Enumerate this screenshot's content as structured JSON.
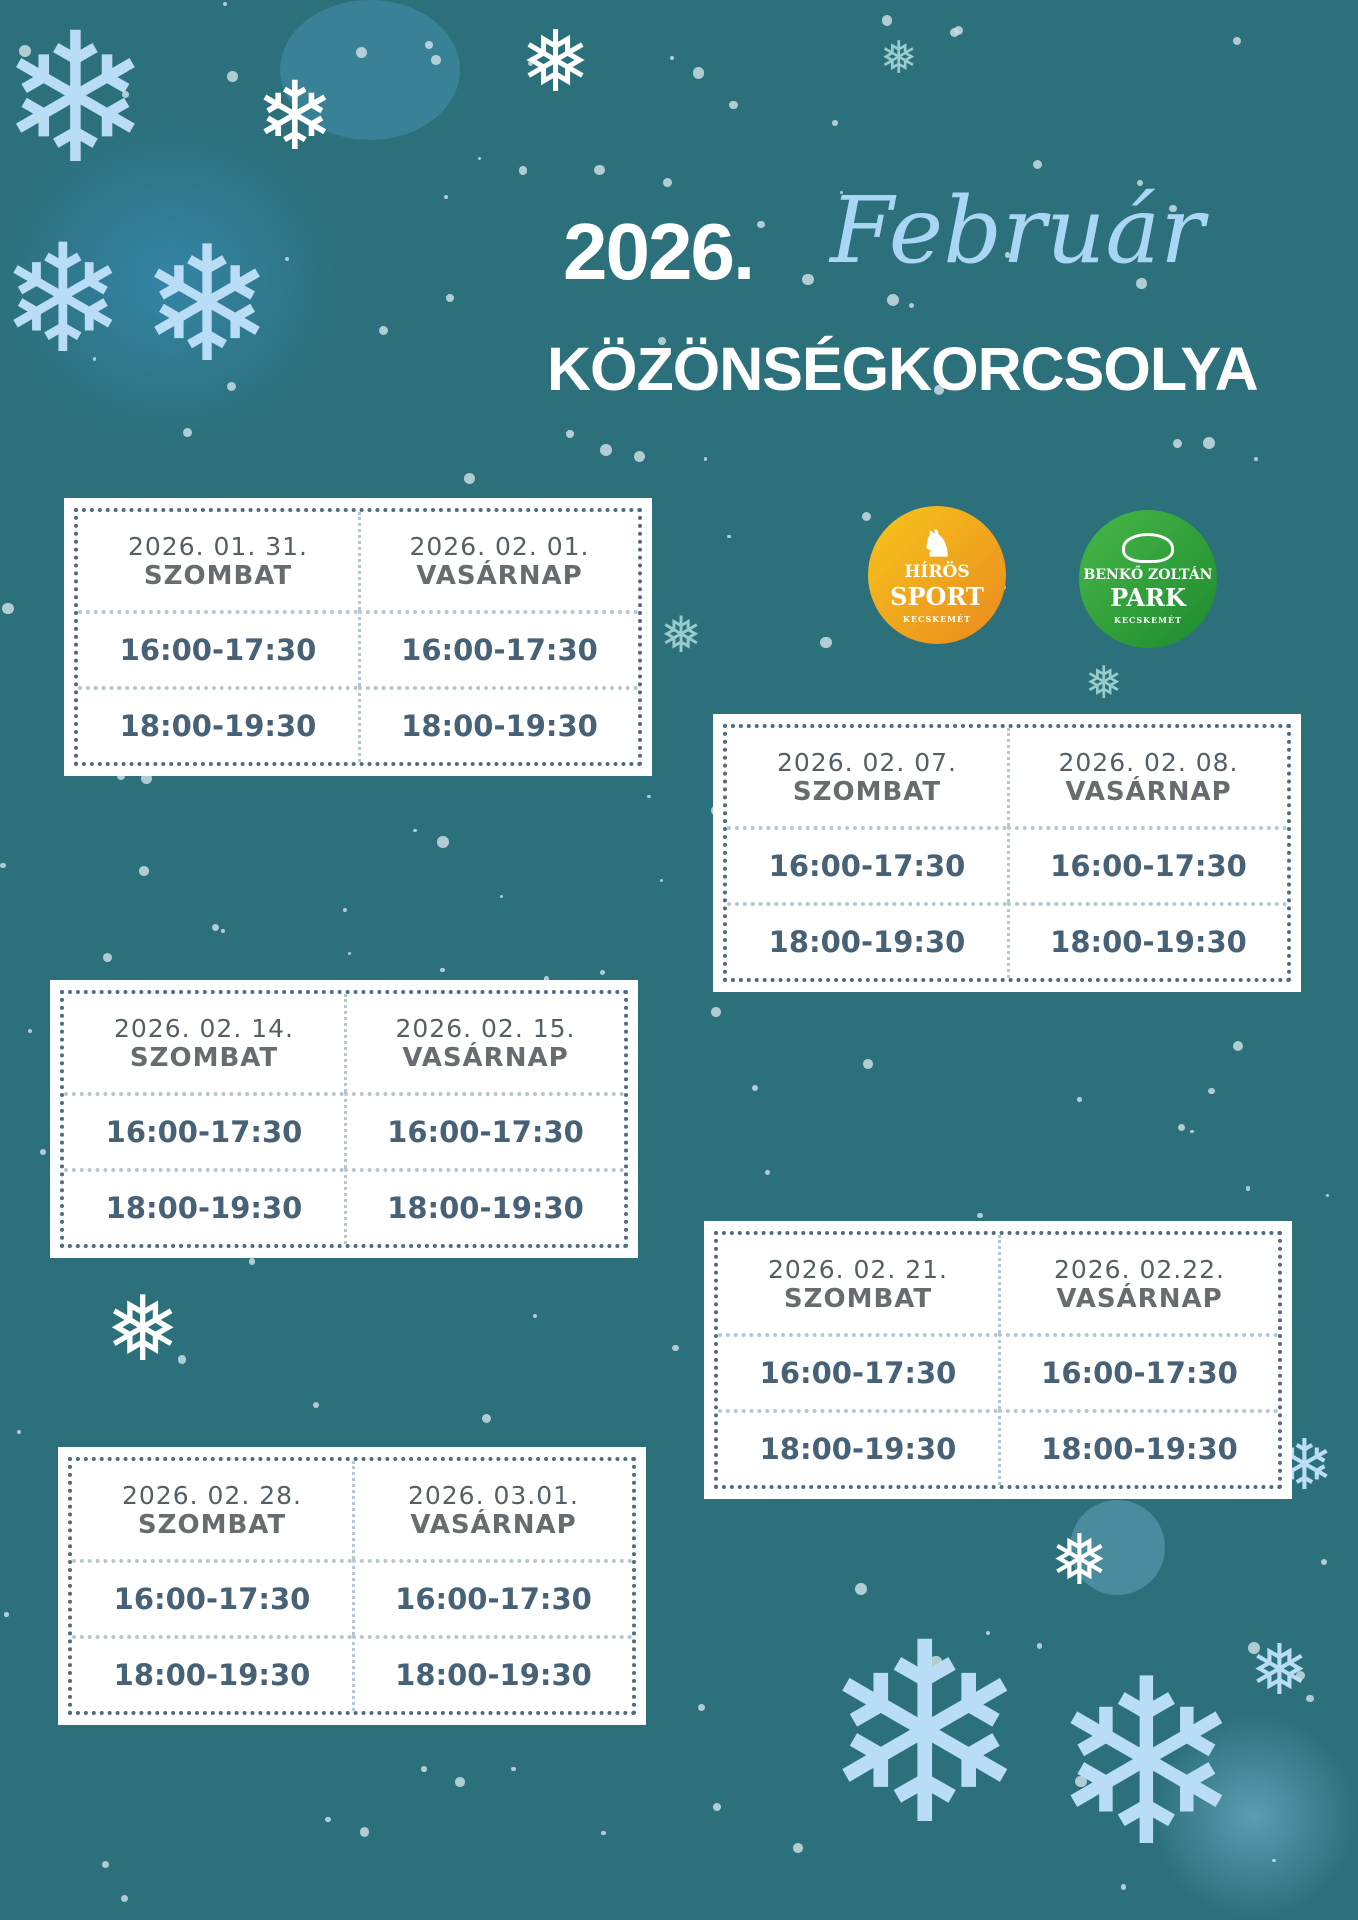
{
  "title": {
    "year": "2026.",
    "month": "Február",
    "event": "KÖZÖNSÉGKORCSOLYA"
  },
  "logos": [
    {
      "line1": "HÍRÖS",
      "line2": "SPORT",
      "line3": "KECSKEMÉT",
      "color": "#f2a516",
      "icon": "goat-icon"
    },
    {
      "line1": "BENKŐ ZOLTÁN",
      "line2": "PARK",
      "line3": "KECSKEMÉT",
      "color": "#2f9c3a",
      "icon": "dome-icon"
    }
  ],
  "schedule": [
    {
      "days": [
        {
          "date": "2026. 01. 31.",
          "day": "SZOMBAT"
        },
        {
          "date": "2026. 02. 01.",
          "day": "VASÁRNAP"
        }
      ],
      "times": [
        "16:00-17:30",
        "18:00-19:30"
      ]
    },
    {
      "days": [
        {
          "date": "2026. 02. 07.",
          "day": "SZOMBAT"
        },
        {
          "date": "2026. 02. 08.",
          "day": "VASÁRNAP"
        }
      ],
      "times": [
        "16:00-17:30",
        "18:00-19:30"
      ]
    },
    {
      "days": [
        {
          "date": "2026. 02. 14.",
          "day": "SZOMBAT"
        },
        {
          "date": "2026. 02. 15.",
          "day": "VASÁRNAP"
        }
      ],
      "times": [
        "16:00-17:30",
        "18:00-19:30"
      ]
    },
    {
      "days": [
        {
          "date": "2026. 02. 21.",
          "day": "SZOMBAT"
        },
        {
          "date": "2026. 02.22.",
          "day": "VASÁRNAP"
        }
      ],
      "times": [
        "16:00-17:30",
        "18:00-19:30"
      ]
    },
    {
      "days": [
        {
          "date": "2026. 02. 28.",
          "day": "SZOMBAT"
        },
        {
          "date": "2026. 03.01.",
          "day": "VASÁRNAP"
        }
      ],
      "times": [
        "16:00-17:30",
        "18:00-19:30"
      ]
    }
  ],
  "colors": {
    "background": "#2c707c",
    "snowflake": "#b9dcf7",
    "table_text": "#476277"
  }
}
